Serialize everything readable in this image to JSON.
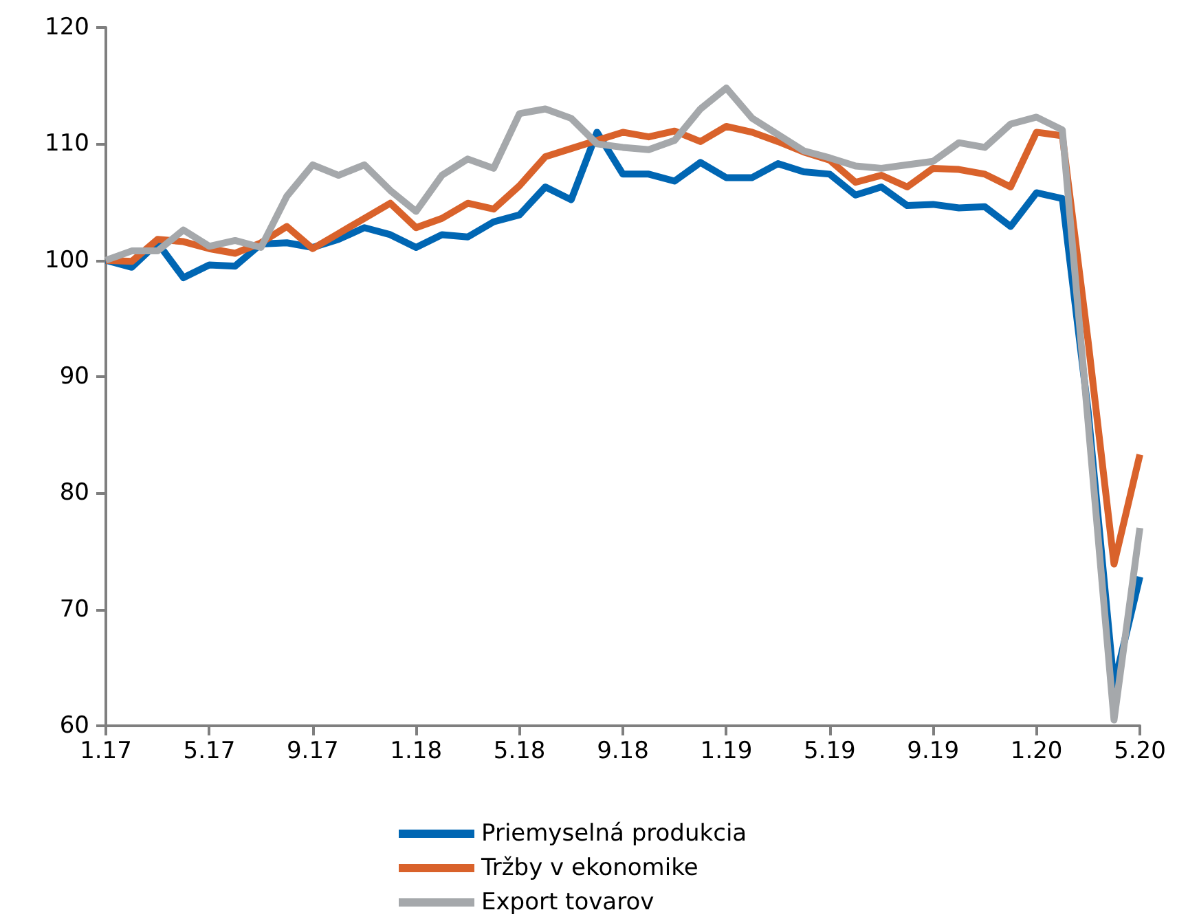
{
  "chart_data": {
    "type": "line",
    "categories": [
      "1.17",
      null,
      null,
      null,
      "5.17",
      null,
      null,
      null,
      "9.17",
      null,
      null,
      null,
      "1.18",
      null,
      null,
      null,
      "5.18",
      null,
      null,
      null,
      "9.18",
      null,
      null,
      null,
      "1.19",
      null,
      null,
      null,
      "5.19",
      null,
      null,
      null,
      "9.19",
      null,
      null,
      null,
      "1.20",
      null,
      null,
      null,
      "5.20"
    ],
    "series": [
      {
        "name": "Priemyselná produkcia",
        "color": "#0066b3",
        "values": [
          100,
          99.4,
          101.5,
          98.5,
          99.6,
          99.5,
          101.4,
          101.5,
          101.1,
          101.8,
          102.8,
          102.2,
          101.1,
          102.2,
          102.0,
          103.3,
          103.9,
          106.3,
          105.2,
          111.0,
          107.4,
          107.4,
          106.8,
          108.4,
          107.1,
          107.1,
          108.3,
          107.6,
          107.4,
          105.6,
          106.3,
          104.7,
          104.8,
          104.5,
          104.6,
          102.9,
          105.8,
          105.3,
          87,
          63.5,
          72.8
        ]
      },
      {
        "name": "Tržby v ekonomike",
        "color": "#d9622b",
        "values": [
          100,
          99.9,
          101.8,
          101.6,
          101.0,
          100.6,
          101.5,
          102.9,
          101.0,
          102.3,
          103.6,
          104.9,
          102.8,
          103.6,
          104.9,
          104.4,
          106.4,
          108.9,
          109.6,
          110.3,
          111.0,
          110.6,
          111.1,
          110.2,
          111.5,
          111.0,
          110.2,
          109.3,
          108.6,
          106.7,
          107.3,
          106.3,
          107.9,
          107.8,
          107.4,
          106.3,
          111.0,
          110.7,
          93,
          73.9,
          83.3
        ]
      },
      {
        "name": "Export tovarov",
        "color": "#a5a8ab",
        "values": [
          100,
          100.8,
          100.8,
          102.6,
          101.2,
          101.7,
          101.1,
          105.5,
          108.2,
          107.3,
          108.2,
          106.0,
          104.2,
          107.3,
          108.7,
          107.9,
          112.6,
          113.0,
          112.2,
          110.0,
          109.7,
          109.5,
          110.3,
          113.0,
          114.8,
          112.2,
          110.8,
          109.4,
          108.8,
          108.1,
          107.9,
          108.2,
          108.5,
          110.1,
          109.7,
          111.7,
          112.3,
          111.2,
          86,
          60.5,
          77
        ]
      }
    ],
    "ylim": [
      60,
      120
    ],
    "yticks": [
      60,
      70,
      80,
      90,
      100,
      110,
      120
    ],
    "grid": false,
    "legend": "bottom",
    "marker": "none",
    "line_style": "solid"
  }
}
